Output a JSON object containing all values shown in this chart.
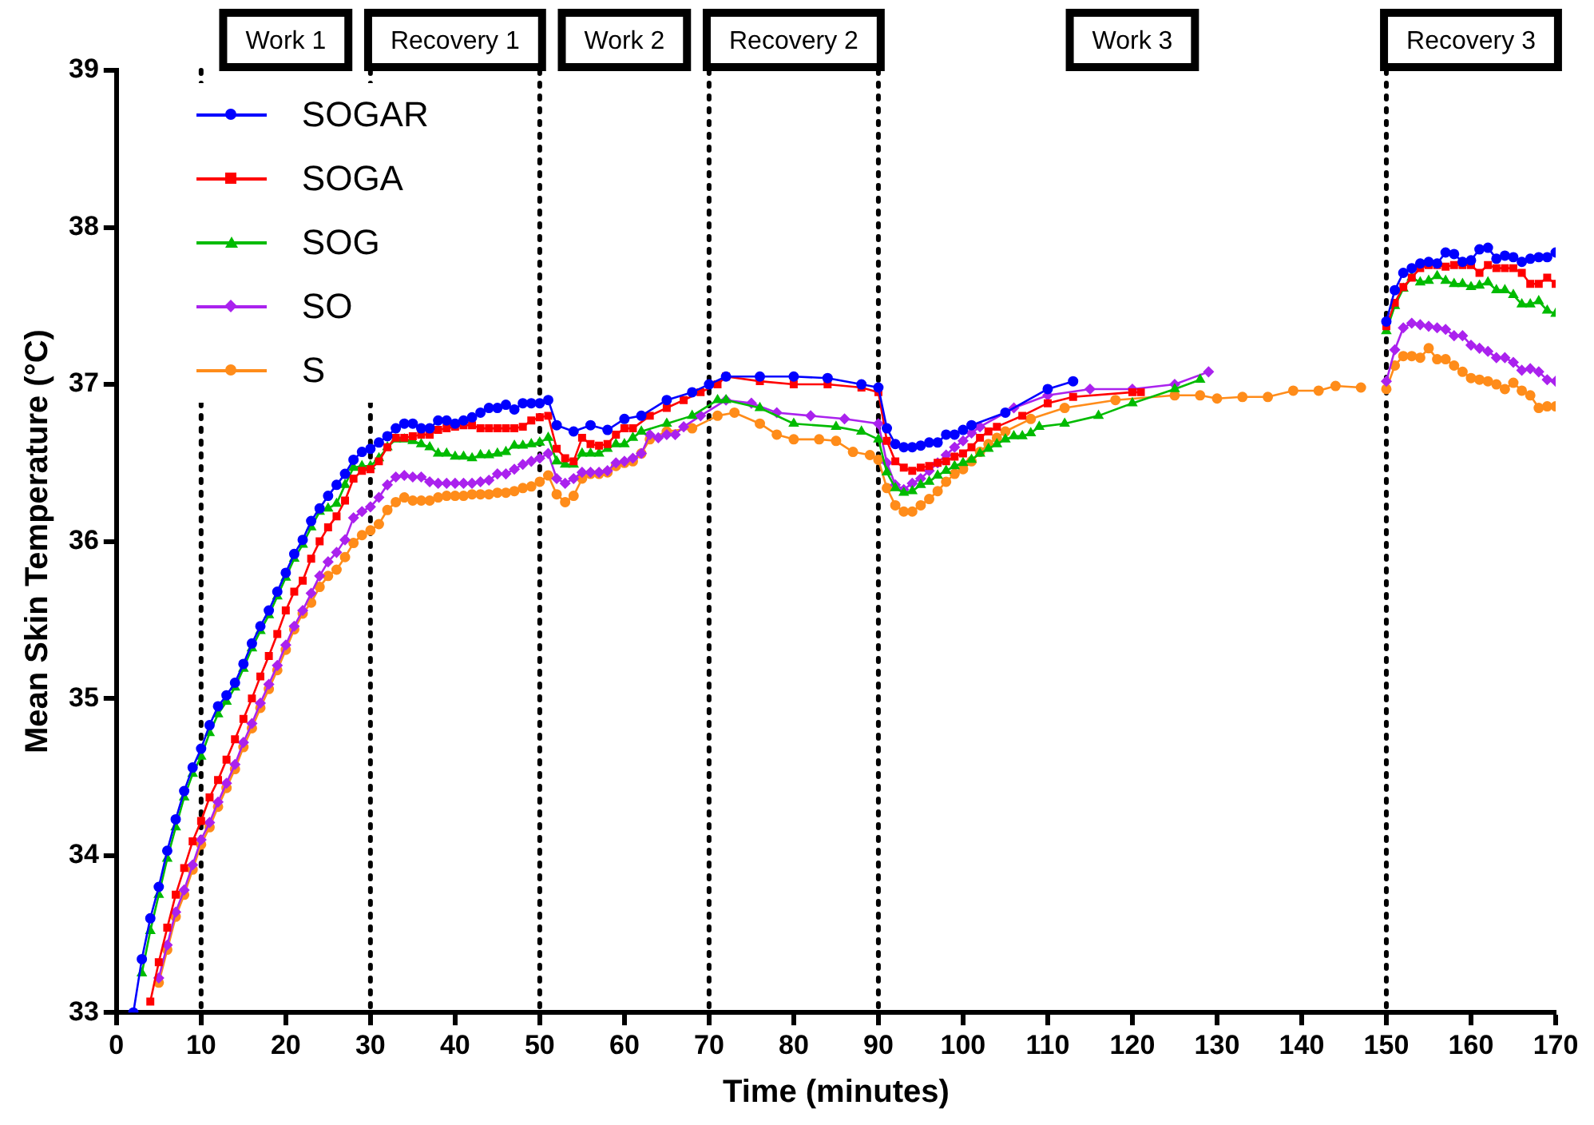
{
  "chart_data": {
    "type": "line",
    "xlabel": "Time (minutes)",
    "ylabel": "Mean Skin Temperature (°C)",
    "xlim": [
      0,
      170
    ],
    "xticks": [
      0,
      10,
      20,
      30,
      40,
      50,
      60,
      70,
      80,
      90,
      100,
      110,
      120,
      130,
      140,
      150,
      160,
      170
    ],
    "ylim": [
      33,
      39
    ],
    "yticks": [
      33,
      34,
      35,
      36,
      37,
      38,
      39
    ],
    "grid": false,
    "legend": "top left",
    "ref_lines": [
      {
        "axis": "x",
        "value": 10,
        "line_style": "dotted",
        "color": "#000000"
      },
      {
        "axis": "x",
        "value": 30,
        "line_style": "dotted",
        "color": "#000000"
      },
      {
        "axis": "x",
        "value": 50,
        "line_style": "dotted",
        "color": "#000000"
      },
      {
        "axis": "x",
        "value": 70,
        "line_style": "dotted",
        "color": "#000000"
      },
      {
        "axis": "x",
        "value": 90,
        "line_style": "dotted",
        "color": "#000000"
      },
      {
        "axis": "x",
        "value": 150,
        "line_style": "dotted",
        "color": "#000000"
      }
    ],
    "annotations": [
      "Work 1",
      "Recovery 1",
      "Work 2",
      "Recovery 2",
      "Work 3",
      "Recovery 3"
    ],
    "series": [
      {
        "name": "SOGAR",
        "color": "#0000ff",
        "marker": "circle",
        "x": [
          2,
          3,
          4,
          5,
          6,
          7,
          8,
          9,
          10,
          11,
          12,
          13,
          14,
          15,
          16,
          17,
          18,
          19,
          20,
          21,
          22,
          23,
          24,
          25,
          26,
          27,
          28,
          29,
          30,
          31,
          32,
          33,
          34,
          35,
          36,
          37,
          38,
          39,
          40,
          41,
          42,
          43,
          44,
          45,
          46,
          47,
          48,
          49,
          50,
          51,
          52,
          54,
          56,
          58,
          60,
          62,
          65,
          68,
          70,
          72,
          76,
          80,
          84,
          88,
          90,
          91,
          92,
          93,
          94,
          95,
          96,
          97,
          98,
          99,
          100,
          101,
          105,
          110,
          113,
          130,
          150,
          151,
          152,
          153,
          154,
          155,
          156,
          157,
          158,
          159,
          160,
          161,
          162,
          163,
          164,
          165,
          166,
          167,
          168,
          169,
          170
        ],
        "values": [
          33.0,
          33.34,
          33.6,
          33.8,
          34.03,
          34.23,
          34.41,
          34.56,
          34.68,
          34.83,
          34.95,
          35.02,
          35.1,
          35.22,
          35.35,
          35.46,
          35.56,
          35.68,
          35.8,
          35.92,
          36.01,
          36.13,
          36.21,
          36.29,
          36.36,
          36.43,
          36.52,
          36.57,
          36.59,
          36.63,
          36.67,
          36.72,
          36.75,
          36.75,
          36.72,
          36.72,
          36.77,
          36.77,
          36.75,
          36.77,
          36.79,
          36.82,
          36.85,
          36.85,
          36.87,
          36.84,
          36.88,
          36.88,
          36.88,
          36.9,
          36.74,
          36.7,
          36.74,
          36.71,
          36.78,
          36.8,
          36.9,
          36.95,
          37.0,
          37.05,
          37.05,
          37.05,
          37.04,
          37.0,
          36.98,
          36.72,
          36.62,
          36.6,
          36.6,
          36.61,
          36.63,
          36.63,
          36.68,
          36.68,
          36.71,
          36.74,
          36.82,
          36.97,
          37.02,
          null,
          37.4,
          37.6,
          37.71,
          37.74,
          37.77,
          37.78,
          37.77,
          37.84,
          37.83,
          37.78,
          37.79,
          37.86,
          37.87,
          37.8,
          37.82,
          37.81,
          37.78,
          37.8,
          37.81,
          37.81,
          37.84
        ]
      },
      {
        "name": "SOGA",
        "color": "#ff0000",
        "marker": "square",
        "x": [
          4,
          5,
          6,
          7,
          8,
          9,
          10,
          11,
          12,
          13,
          14,
          15,
          16,
          17,
          18,
          19,
          20,
          21,
          22,
          23,
          24,
          25,
          26,
          27,
          28,
          29,
          30,
          31,
          32,
          33,
          34,
          35,
          36,
          37,
          38,
          39,
          40,
          41,
          42,
          43,
          44,
          45,
          46,
          47,
          48,
          49,
          50,
          51,
          52,
          53,
          54,
          55,
          56,
          57,
          58,
          59,
          60,
          61,
          63,
          65,
          67,
          69,
          71,
          72,
          76,
          80,
          84,
          88,
          90,
          91,
          92,
          93,
          94,
          95,
          96,
          97,
          98,
          99,
          100,
          101,
          102,
          103,
          104,
          107,
          110,
          113,
          120,
          121,
          135,
          150,
          151,
          152,
          153,
          154,
          155,
          156,
          157,
          158,
          159,
          160,
          161,
          162,
          163,
          164,
          165,
          166,
          167,
          168,
          169,
          170
        ],
        "values": [
          33.07,
          33.32,
          33.54,
          33.75,
          33.92,
          34.09,
          34.22,
          34.37,
          34.48,
          34.61,
          34.74,
          34.87,
          35.0,
          35.14,
          35.27,
          35.41,
          35.56,
          35.68,
          35.75,
          35.89,
          36.0,
          36.09,
          36.16,
          36.26,
          36.4,
          36.45,
          36.46,
          36.51,
          36.6,
          36.66,
          36.66,
          36.67,
          36.68,
          36.68,
          36.71,
          36.72,
          36.73,
          36.74,
          36.74,
          36.72,
          36.72,
          36.72,
          36.72,
          36.72,
          36.73,
          36.77,
          36.79,
          36.8,
          36.59,
          36.53,
          36.51,
          36.66,
          36.62,
          36.61,
          36.62,
          36.68,
          36.72,
          36.72,
          36.8,
          36.85,
          36.9,
          36.95,
          37.0,
          37.05,
          37.02,
          37.0,
          37.0,
          36.98,
          36.95,
          36.64,
          36.51,
          36.47,
          36.45,
          36.47,
          36.48,
          36.5,
          36.51,
          36.54,
          36.56,
          36.6,
          36.66,
          36.7,
          36.73,
          36.8,
          36.88,
          36.92,
          36.95,
          36.95,
          null,
          37.37,
          37.52,
          37.62,
          37.68,
          37.74,
          37.76,
          37.76,
          37.75,
          37.76,
          37.76,
          37.76,
          37.71,
          37.76,
          37.74,
          37.74,
          37.74,
          37.71,
          37.64,
          37.64,
          37.68,
          37.64
        ]
      },
      {
        "name": "SOG",
        "color": "#00bb00",
        "marker": "triangle",
        "x": [
          3,
          4,
          5,
          6,
          7,
          8,
          9,
          10,
          11,
          12,
          13,
          14,
          15,
          16,
          17,
          18,
          19,
          20,
          21,
          22,
          23,
          24,
          25,
          26,
          27,
          28,
          29,
          30,
          31,
          32,
          33,
          34,
          35,
          36,
          37,
          38,
          39,
          40,
          41,
          42,
          43,
          44,
          45,
          46,
          47,
          48,
          49,
          50,
          51,
          52,
          53,
          54,
          55,
          56,
          57,
          58,
          59,
          60,
          61,
          62,
          65,
          68,
          71,
          72,
          76,
          80,
          85,
          88,
          90,
          91,
          92,
          93,
          94,
          95,
          96,
          97,
          98,
          99,
          100,
          101,
          102,
          103,
          104,
          105,
          106,
          107,
          108,
          109,
          112,
          116,
          120,
          125,
          128,
          140,
          150,
          151,
          152,
          153,
          154,
          155,
          156,
          157,
          158,
          159,
          160,
          161,
          162,
          163,
          164,
          165,
          166,
          167,
          168,
          169,
          170
        ],
        "values": [
          33.25,
          33.52,
          33.75,
          33.98,
          34.18,
          34.37,
          34.52,
          34.63,
          34.78,
          34.9,
          34.98,
          35.07,
          35.19,
          35.32,
          35.43,
          35.53,
          35.65,
          35.77,
          35.89,
          35.98,
          36.09,
          36.19,
          36.21,
          36.24,
          36.36,
          36.47,
          36.48,
          36.48,
          36.53,
          36.6,
          36.65,
          36.65,
          36.64,
          36.62,
          36.6,
          36.56,
          36.56,
          36.54,
          36.54,
          36.53,
          36.55,
          36.55,
          36.56,
          36.57,
          36.61,
          36.61,
          36.62,
          36.63,
          36.66,
          36.51,
          36.49,
          36.49,
          36.56,
          36.56,
          36.56,
          36.59,
          36.62,
          36.62,
          36.66,
          36.7,
          36.75,
          36.8,
          36.9,
          36.9,
          36.85,
          36.75,
          36.73,
          36.7,
          36.65,
          36.44,
          36.34,
          36.31,
          36.32,
          36.36,
          36.38,
          36.42,
          36.45,
          36.48,
          36.5,
          36.52,
          36.56,
          36.59,
          36.62,
          36.65,
          36.67,
          36.67,
          36.69,
          36.73,
          36.75,
          36.8,
          36.88,
          36.97,
          37.03,
          null,
          37.34,
          37.5,
          37.61,
          37.68,
          37.65,
          37.66,
          37.69,
          37.66,
          37.64,
          37.64,
          37.62,
          37.63,
          37.65,
          37.6,
          37.6,
          37.57,
          37.51,
          37.51,
          37.53,
          37.47,
          37.45
        ]
      },
      {
        "name": "SO",
        "color": "#aa22ee",
        "marker": "diamond",
        "x": [
          5,
          6,
          7,
          8,
          9,
          10,
          11,
          12,
          13,
          14,
          15,
          16,
          17,
          18,
          19,
          20,
          21,
          22,
          23,
          24,
          25,
          26,
          27,
          28,
          29,
          30,
          31,
          32,
          33,
          34,
          35,
          36,
          37,
          38,
          39,
          40,
          41,
          42,
          43,
          44,
          45,
          46,
          47,
          48,
          49,
          50,
          51,
          52,
          53,
          54,
          55,
          56,
          57,
          58,
          59,
          60,
          61,
          62,
          63,
          64,
          65,
          66,
          67,
          69,
          72,
          75,
          78,
          82,
          86,
          90,
          91,
          92,
          93,
          94,
          95,
          96,
          97,
          98,
          99,
          100,
          101,
          102,
          106,
          110,
          115,
          120,
          125,
          129,
          140,
          150,
          151,
          152,
          153,
          154,
          155,
          156,
          157,
          158,
          159,
          160,
          161,
          162,
          163,
          164,
          165,
          166,
          167,
          168,
          169,
          170
        ],
        "values": [
          33.22,
          33.43,
          33.64,
          33.78,
          33.94,
          34.1,
          34.21,
          34.34,
          34.46,
          34.58,
          34.72,
          34.84,
          34.97,
          35.09,
          35.21,
          35.34,
          35.46,
          35.56,
          35.67,
          35.78,
          35.87,
          35.93,
          36.01,
          36.15,
          36.19,
          36.22,
          36.28,
          36.36,
          36.41,
          36.42,
          36.41,
          36.41,
          36.38,
          36.37,
          36.37,
          36.37,
          36.37,
          36.37,
          36.38,
          36.39,
          36.43,
          36.43,
          36.46,
          36.49,
          36.51,
          36.53,
          36.56,
          36.4,
          36.37,
          36.4,
          36.44,
          36.44,
          36.44,
          36.45,
          36.5,
          36.51,
          36.53,
          36.56,
          36.68,
          36.66,
          36.68,
          36.68,
          36.73,
          36.8,
          36.9,
          36.88,
          36.82,
          36.8,
          36.78,
          36.75,
          36.5,
          36.36,
          36.33,
          36.37,
          36.4,
          36.45,
          36.5,
          36.55,
          36.6,
          36.64,
          36.69,
          36.73,
          36.85,
          36.93,
          36.97,
          36.97,
          37.0,
          37.08,
          null,
          37.02,
          37.22,
          37.36,
          37.39,
          37.38,
          37.37,
          37.36,
          37.35,
          37.31,
          37.31,
          37.25,
          37.23,
          37.21,
          37.17,
          37.17,
          37.14,
          37.09,
          37.1,
          37.08,
          37.03,
          37.02
        ]
      },
      {
        "name": "S",
        "color": "#ff8c1a",
        "marker": "circle",
        "x": [
          5,
          6,
          7,
          8,
          9,
          10,
          11,
          12,
          13,
          14,
          15,
          16,
          17,
          18,
          19,
          20,
          21,
          22,
          23,
          24,
          25,
          26,
          27,
          28,
          29,
          30,
          31,
          32,
          33,
          34,
          35,
          36,
          37,
          38,
          39,
          40,
          41,
          42,
          43,
          44,
          45,
          46,
          47,
          48,
          49,
          50,
          51,
          52,
          53,
          54,
          55,
          56,
          57,
          58,
          59,
          60,
          61,
          62,
          63,
          65,
          68,
          71,
          73,
          76,
          78,
          80,
          83,
          85,
          87,
          89,
          90,
          91,
          92,
          93,
          94,
          95,
          96,
          97,
          98,
          99,
          100,
          101,
          102,
          103,
          104,
          105,
          108,
          112,
          118,
          125,
          128,
          130,
          133,
          136,
          139,
          142,
          144,
          147,
          148,
          150,
          151,
          152,
          153,
          154,
          155,
          156,
          157,
          158,
          159,
          160,
          161,
          162,
          163,
          164,
          165,
          166,
          167,
          168,
          169,
          170
        ],
        "values": [
          33.19,
          33.4,
          33.61,
          33.75,
          33.91,
          34.07,
          34.18,
          34.31,
          34.43,
          34.55,
          34.69,
          34.81,
          34.94,
          35.06,
          35.18,
          35.31,
          35.44,
          35.54,
          35.61,
          35.71,
          35.78,
          35.82,
          35.9,
          35.99,
          36.04,
          36.07,
          36.11,
          36.2,
          36.25,
          36.28,
          36.26,
          36.26,
          36.26,
          36.28,
          36.29,
          36.29,
          36.29,
          36.3,
          36.3,
          36.3,
          36.31,
          36.31,
          36.32,
          36.34,
          36.35,
          36.38,
          36.42,
          36.3,
          36.25,
          36.29,
          36.4,
          36.43,
          36.43,
          36.44,
          36.48,
          36.5,
          36.51,
          36.56,
          36.65,
          36.7,
          36.72,
          36.8,
          36.82,
          36.75,
          36.68,
          36.65,
          36.65,
          36.64,
          36.57,
          36.55,
          36.52,
          36.34,
          36.23,
          36.19,
          36.19,
          36.23,
          36.27,
          36.32,
          36.38,
          36.43,
          36.46,
          36.51,
          36.57,
          36.62,
          36.66,
          36.7,
          36.78,
          36.85,
          36.9,
          36.93,
          36.93,
          36.91,
          36.92,
          36.92,
          36.96,
          36.96,
          36.99,
          36.98,
          null,
          36.97,
          37.12,
          37.18,
          37.18,
          37.17,
          37.23,
          37.16,
          37.16,
          37.12,
          37.08,
          37.04,
          37.03,
          37.02,
          37.0,
          36.97,
          37.01,
          36.96,
          36.93,
          36.85,
          36.86,
          36.86
        ]
      }
    ]
  }
}
